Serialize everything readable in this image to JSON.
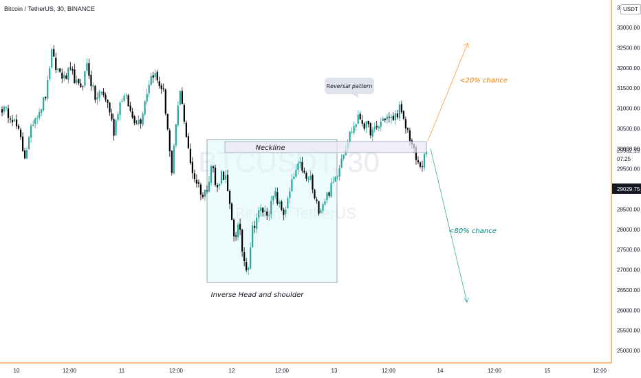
{
  "header": {
    "title": "Bitcoin / TetherUS, 30, BINANCE",
    "currency": "USDT"
  },
  "price_axis": {
    "labels": [
      "33000.00",
      "32500.00",
      "32000.00",
      "31500.00",
      "31000.00",
      "30500.00",
      "30000.00",
      "29500.00",
      "29000.00",
      "28500.00",
      "28000.00",
      "27500.00",
      "27000.00",
      "26500.00",
      "26000.00",
      "25500.00",
      "25000.00"
    ],
    "top_partial": "3",
    "current_price": "29982.19",
    "countdown": "07:25",
    "marker_price": "29029.75"
  },
  "time_axis": {
    "labels": [
      "10",
      "12:00",
      "11",
      "12:00",
      "12",
      "12:00",
      "13",
      "12:00",
      "14",
      "12:00",
      "15",
      "12:00"
    ]
  },
  "watermark": {
    "symbol": "BTCUSDT, 30",
    "name": "Bitcoin / TetherUS"
  },
  "annotations": {
    "neckline": "Neckline",
    "pattern": "Inverse Head and shoulder",
    "callout": "Reversal pattern",
    "up_chance": "<20% chance",
    "down_chance": "<80% chance"
  },
  "colors": {
    "up": "#26a69a",
    "down": "#000000",
    "orange": "#f57c00",
    "teal_text": "#00897b",
    "axis_line": "#f57c00",
    "pattern_fill": "#e0f7fa",
    "neckline_fill": "#f3f0fb"
  },
  "chart_data": {
    "type": "candlestick",
    "symbol": "BTCUSDT",
    "timeframe": "30",
    "exchange": "BINANCE",
    "y_axis": {
      "min": 25000,
      "max": 33000,
      "unit": "USDT"
    },
    "x_axis": [
      "10",
      "12:00",
      "11",
      "12:00",
      "12",
      "12:00",
      "13",
      "12:00",
      "14",
      "12:00",
      "15",
      "12:00"
    ],
    "close_path": [
      31000,
      30900,
      30850,
      30600,
      30300,
      29800,
      30200,
      30700,
      30900,
      31100,
      31400,
      32400,
      32000,
      31900,
      31700,
      31900,
      31800,
      31500,
      31600,
      32100,
      31600,
      31200,
      31400,
      31300,
      31000,
      30400,
      31000,
      31300,
      31200,
      30800,
      30700,
      30700,
      31200,
      31700,
      31900,
      31600,
      31500,
      30600,
      29300,
      30700,
      31500,
      30500,
      29700,
      29300,
      29100,
      28800,
      29100,
      29700,
      28900,
      29400,
      29300,
      28500,
      27800,
      28100,
      27300,
      27000,
      28000,
      28300,
      28500,
      28400,
      28500,
      28900,
      28600,
      28400,
      28700,
      29200,
      29500,
      29600,
      29200,
      29300,
      28700,
      28500,
      28700,
      28900,
      29100,
      29400,
      29800,
      30100,
      30400,
      30600,
      30800,
      30600,
      30500,
      30400,
      30500,
      30700,
      30800,
      30700,
      30800,
      31000,
      30600,
      30400,
      30000,
      29600,
      29600,
      29900
    ],
    "current_price": 29982.19,
    "marker_price": 29029.75,
    "neckline_zone": [
      29800,
      30000
    ],
    "pattern_box_price_range": [
      26800,
      30000
    ],
    "projections": [
      {
        "label": "<20% chance",
        "target": 32700
      },
      {
        "label": "<80% chance",
        "target": 26100
      }
    ]
  }
}
